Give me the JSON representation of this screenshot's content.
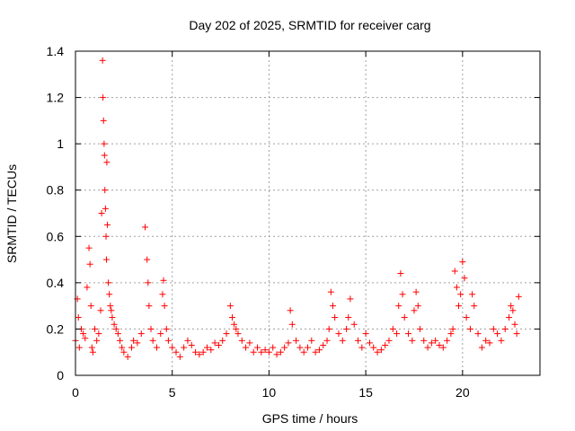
{
  "chart_data": {
    "type": "scatter",
    "title": "Day 202 of 2025, SRMTID for receiver carg",
    "xlabel": "GPS time / hours",
    "ylabel": "SRMTID / TECUs",
    "xlim": [
      0,
      24
    ],
    "ylim": [
      0,
      1.4
    ],
    "xticks": [
      0,
      5,
      10,
      15,
      20
    ],
    "xtick_labels": [
      "0",
      "5",
      "10",
      "15",
      "20"
    ],
    "yticks": [
      0,
      0.2,
      0.4,
      0.6,
      0.8,
      1,
      1.2,
      1.4
    ],
    "ytick_labels": [
      "0",
      "0.2",
      "0.4",
      "0.6",
      "0.8",
      "1",
      "1.2",
      "1.4"
    ],
    "grid": true,
    "marker": "+",
    "series": [
      {
        "name": "SRMTID",
        "color": "#ff0000",
        "x": [
          0.0,
          0.1,
          0.15,
          0.2,
          0.3,
          0.4,
          0.5,
          0.6,
          0.7,
          0.75,
          0.8,
          0.85,
          0.9,
          1.0,
          1.1,
          1.2,
          1.3,
          1.35,
          1.4,
          1.42,
          1.45,
          1.48,
          1.5,
          1.52,
          1.55,
          1.58,
          1.6,
          1.62,
          1.65,
          1.7,
          1.75,
          1.8,
          1.85,
          1.9,
          2.0,
          2.1,
          2.2,
          2.3,
          2.4,
          2.5,
          2.7,
          2.9,
          3.0,
          3.2,
          3.4,
          3.6,
          3.7,
          3.75,
          3.8,
          3.9,
          4.0,
          4.2,
          4.4,
          4.5,
          4.55,
          4.6,
          4.7,
          4.8,
          5.0,
          5.2,
          5.4,
          5.6,
          5.8,
          6.0,
          6.2,
          6.4,
          6.6,
          6.8,
          7.0,
          7.2,
          7.4,
          7.6,
          7.8,
          8.0,
          8.1,
          8.2,
          8.3,
          8.4,
          8.6,
          8.8,
          9.0,
          9.2,
          9.4,
          9.6,
          9.8,
          10.0,
          10.2,
          10.4,
          10.6,
          10.8,
          11.0,
          11.1,
          11.2,
          11.4,
          11.6,
          11.8,
          12.0,
          12.2,
          12.4,
          12.6,
          12.8,
          13.0,
          13.1,
          13.2,
          13.3,
          13.4,
          13.6,
          13.8,
          14.0,
          14.1,
          14.2,
          14.4,
          14.6,
          14.8,
          15.0,
          15.2,
          15.4,
          15.6,
          15.8,
          16.0,
          16.2,
          16.4,
          16.6,
          16.7,
          16.8,
          16.9,
          17.0,
          17.2,
          17.4,
          17.5,
          17.6,
          17.7,
          17.8,
          18.0,
          18.2,
          18.4,
          18.6,
          18.8,
          19.0,
          19.2,
          19.4,
          19.5,
          19.6,
          19.7,
          19.8,
          19.9,
          20.0,
          20.1,
          20.2,
          20.4,
          20.5,
          20.6,
          20.8,
          21.0,
          21.2,
          21.4,
          21.6,
          21.8,
          22.0,
          22.2,
          22.4,
          22.5,
          22.6,
          22.7,
          22.8,
          22.9
        ],
        "y": [
          0.15,
          0.33,
          0.25,
          0.12,
          0.2,
          0.18,
          0.16,
          0.38,
          0.55,
          0.48,
          0.3,
          0.12,
          0.1,
          0.2,
          0.15,
          0.18,
          0.28,
          0.7,
          1.36,
          1.2,
          1.1,
          1.0,
          0.95,
          0.8,
          0.72,
          0.6,
          0.5,
          0.92,
          0.65,
          0.4,
          0.35,
          0.3,
          0.28,
          0.25,
          0.22,
          0.2,
          0.18,
          0.15,
          0.12,
          0.1,
          0.08,
          0.12,
          0.15,
          0.14,
          0.18,
          0.64,
          0.5,
          0.4,
          0.3,
          0.2,
          0.15,
          0.12,
          0.18,
          0.35,
          0.41,
          0.3,
          0.2,
          0.15,
          0.12,
          0.1,
          0.08,
          0.12,
          0.15,
          0.13,
          0.1,
          0.09,
          0.1,
          0.12,
          0.11,
          0.14,
          0.13,
          0.15,
          0.18,
          0.3,
          0.25,
          0.22,
          0.2,
          0.18,
          0.15,
          0.12,
          0.14,
          0.1,
          0.12,
          0.1,
          0.11,
          0.1,
          0.12,
          0.09,
          0.1,
          0.12,
          0.14,
          0.28,
          0.22,
          0.15,
          0.12,
          0.1,
          0.12,
          0.15,
          0.1,
          0.11,
          0.13,
          0.15,
          0.2,
          0.36,
          0.3,
          0.25,
          0.18,
          0.15,
          0.2,
          0.25,
          0.33,
          0.22,
          0.15,
          0.12,
          0.18,
          0.14,
          0.12,
          0.1,
          0.11,
          0.13,
          0.15,
          0.2,
          0.18,
          0.3,
          0.44,
          0.35,
          0.25,
          0.18,
          0.15,
          0.28,
          0.36,
          0.3,
          0.2,
          0.15,
          0.12,
          0.14,
          0.15,
          0.13,
          0.12,
          0.15,
          0.18,
          0.2,
          0.45,
          0.38,
          0.3,
          0.35,
          0.49,
          0.42,
          0.25,
          0.2,
          0.35,
          0.3,
          0.18,
          0.12,
          0.15,
          0.14,
          0.2,
          0.18,
          0.15,
          0.2,
          0.25,
          0.3,
          0.28,
          0.22,
          0.18,
          0.34
        ]
      }
    ]
  }
}
